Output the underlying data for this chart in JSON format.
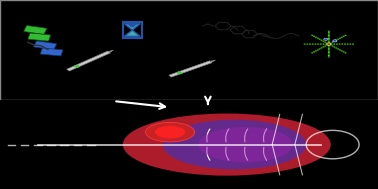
{
  "top_bg": "#ffffff",
  "bottom_bg": "#000000",
  "border_color": "#888888",
  "arrow_color": "#000000",
  "hourglass_color": "#2255aa",
  "hourglass_sand_color": "#44aaaa",
  "protein_green": "#33bb33",
  "protein_blue": "#3366cc",
  "syringe_green": "#44cc44",
  "molecule_color": "#222222",
  "nanoparticle_green": "#44ee00",
  "nanoparticle_node_red": "#cc2222",
  "nanoparticle_node_blue": "#2244cc",
  "tumor_red": "#cc2222",
  "body_red": "#cc2233",
  "body_blue": "#3333cc",
  "body_purple": "#9922aa",
  "figsize": [
    3.78,
    1.89
  ],
  "dpi": 100
}
